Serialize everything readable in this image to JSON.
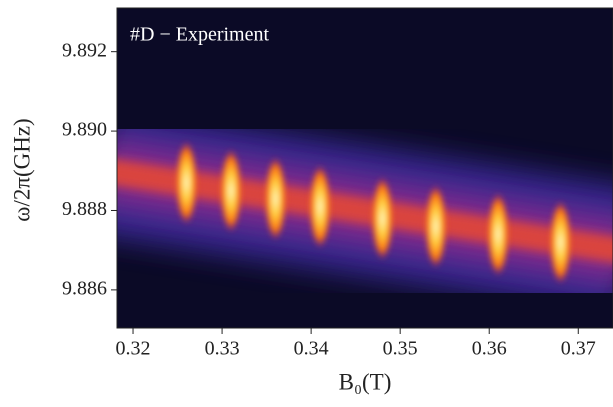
{
  "chart_data": {
    "type": "heatmap",
    "annotation": "#D − Experiment",
    "xlabel": "B₀(T)",
    "ylabel": "ω/2π(GHz)",
    "x": [
      0.326,
      0.331,
      0.336,
      0.341,
      0.348,
      0.354,
      0.361,
      0.368
    ],
    "values": [
      9.8887,
      9.8885,
      9.8883,
      9.8881,
      9.8878,
      9.8876,
      9.8874,
      9.8872
    ],
    "xlim": [
      0.3182,
      0.3739
    ],
    "ylim": [
      9.88504,
      9.8931
    ],
    "xticks": [
      0.32,
      0.33,
      0.34,
      0.35,
      0.36,
      0.37
    ],
    "yticks": [
      {
        "value": 9.886,
        "label": "9.886"
      },
      {
        "value": 9.888,
        "label": "9.888"
      },
      {
        "value": 9.89,
        "label": "9.890"
      },
      {
        "value": 9.892,
        "label": "9.892"
      }
    ]
  }
}
